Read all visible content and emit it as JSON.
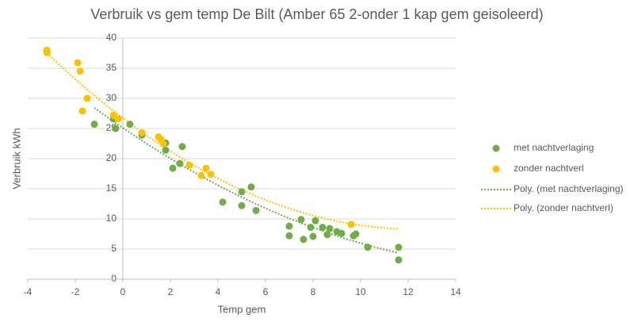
{
  "chart_data": {
    "type": "scatter",
    "title": "Verbruik vs gem temp De Bilt (Amber 65 2-onder 1 kap gem geisoleerd)",
    "x_label": "Temp gem",
    "y_label": "Verbruik kWh",
    "xlim": [
      -4,
      14
    ],
    "xticks": [
      -4,
      -2,
      0,
      2,
      4,
      6,
      8,
      10,
      12,
      14
    ],
    "ylim": [
      0,
      40
    ],
    "yticks": [
      0,
      5,
      10,
      15,
      20,
      25,
      30,
      35,
      40
    ],
    "grid": true,
    "legend": "right",
    "series": [
      {
        "name": "met nachtverlaging",
        "color": "#70ad47",
        "x": [
          -1.2,
          -0.4,
          -0.3,
          0.3,
          0.8,
          1.8,
          1.8,
          2.1,
          2.4,
          2.5,
          4.2,
          5.0,
          5.0,
          5.4,
          5.6,
          7.0,
          7.0,
          7.5,
          7.6,
          7.9,
          8.0,
          8.1,
          8.4,
          8.6,
          8.7,
          9.0,
          9.2,
          9.7,
          9.8,
          10.3,
          11.6,
          11.6
        ],
        "values": [
          25.7,
          26.6,
          25.0,
          25.7,
          23.9,
          22.6,
          21.4,
          18.4,
          19.2,
          22.0,
          12.8,
          14.5,
          12.2,
          15.3,
          11.4,
          8.8,
          7.2,
          9.9,
          6.6,
          8.6,
          7.1,
          9.7,
          8.6,
          7.4,
          8.4,
          7.9,
          7.6,
          7.2,
          7.5,
          5.3,
          5.3,
          3.2
        ]
      },
      {
        "name": "zonder nachtverl",
        "color": "#ffc000",
        "x": [
          -3.2,
          -3.2,
          -1.9,
          -1.8,
          -1.7,
          -1.5,
          -0.4,
          -0.2,
          0.8,
          1.5,
          1.6,
          1.7,
          2.8,
          3.3,
          3.5,
          3.7,
          9.6
        ],
        "values": [
          38.0,
          37.6,
          35.9,
          34.5,
          27.9,
          30.0,
          27.2,
          26.6,
          24.3,
          23.6,
          23.2,
          22.5,
          18.9,
          17.2,
          18.4,
          17.4,
          9.1
        ]
      }
    ],
    "trendlines": [
      {
        "name": "Poly. (met nachtverlaging)",
        "series": 0,
        "color": "#70ad47"
      },
      {
        "name": "Poly. (zonder nachtverl)",
        "series": 1,
        "color": "#ffc000"
      }
    ]
  }
}
